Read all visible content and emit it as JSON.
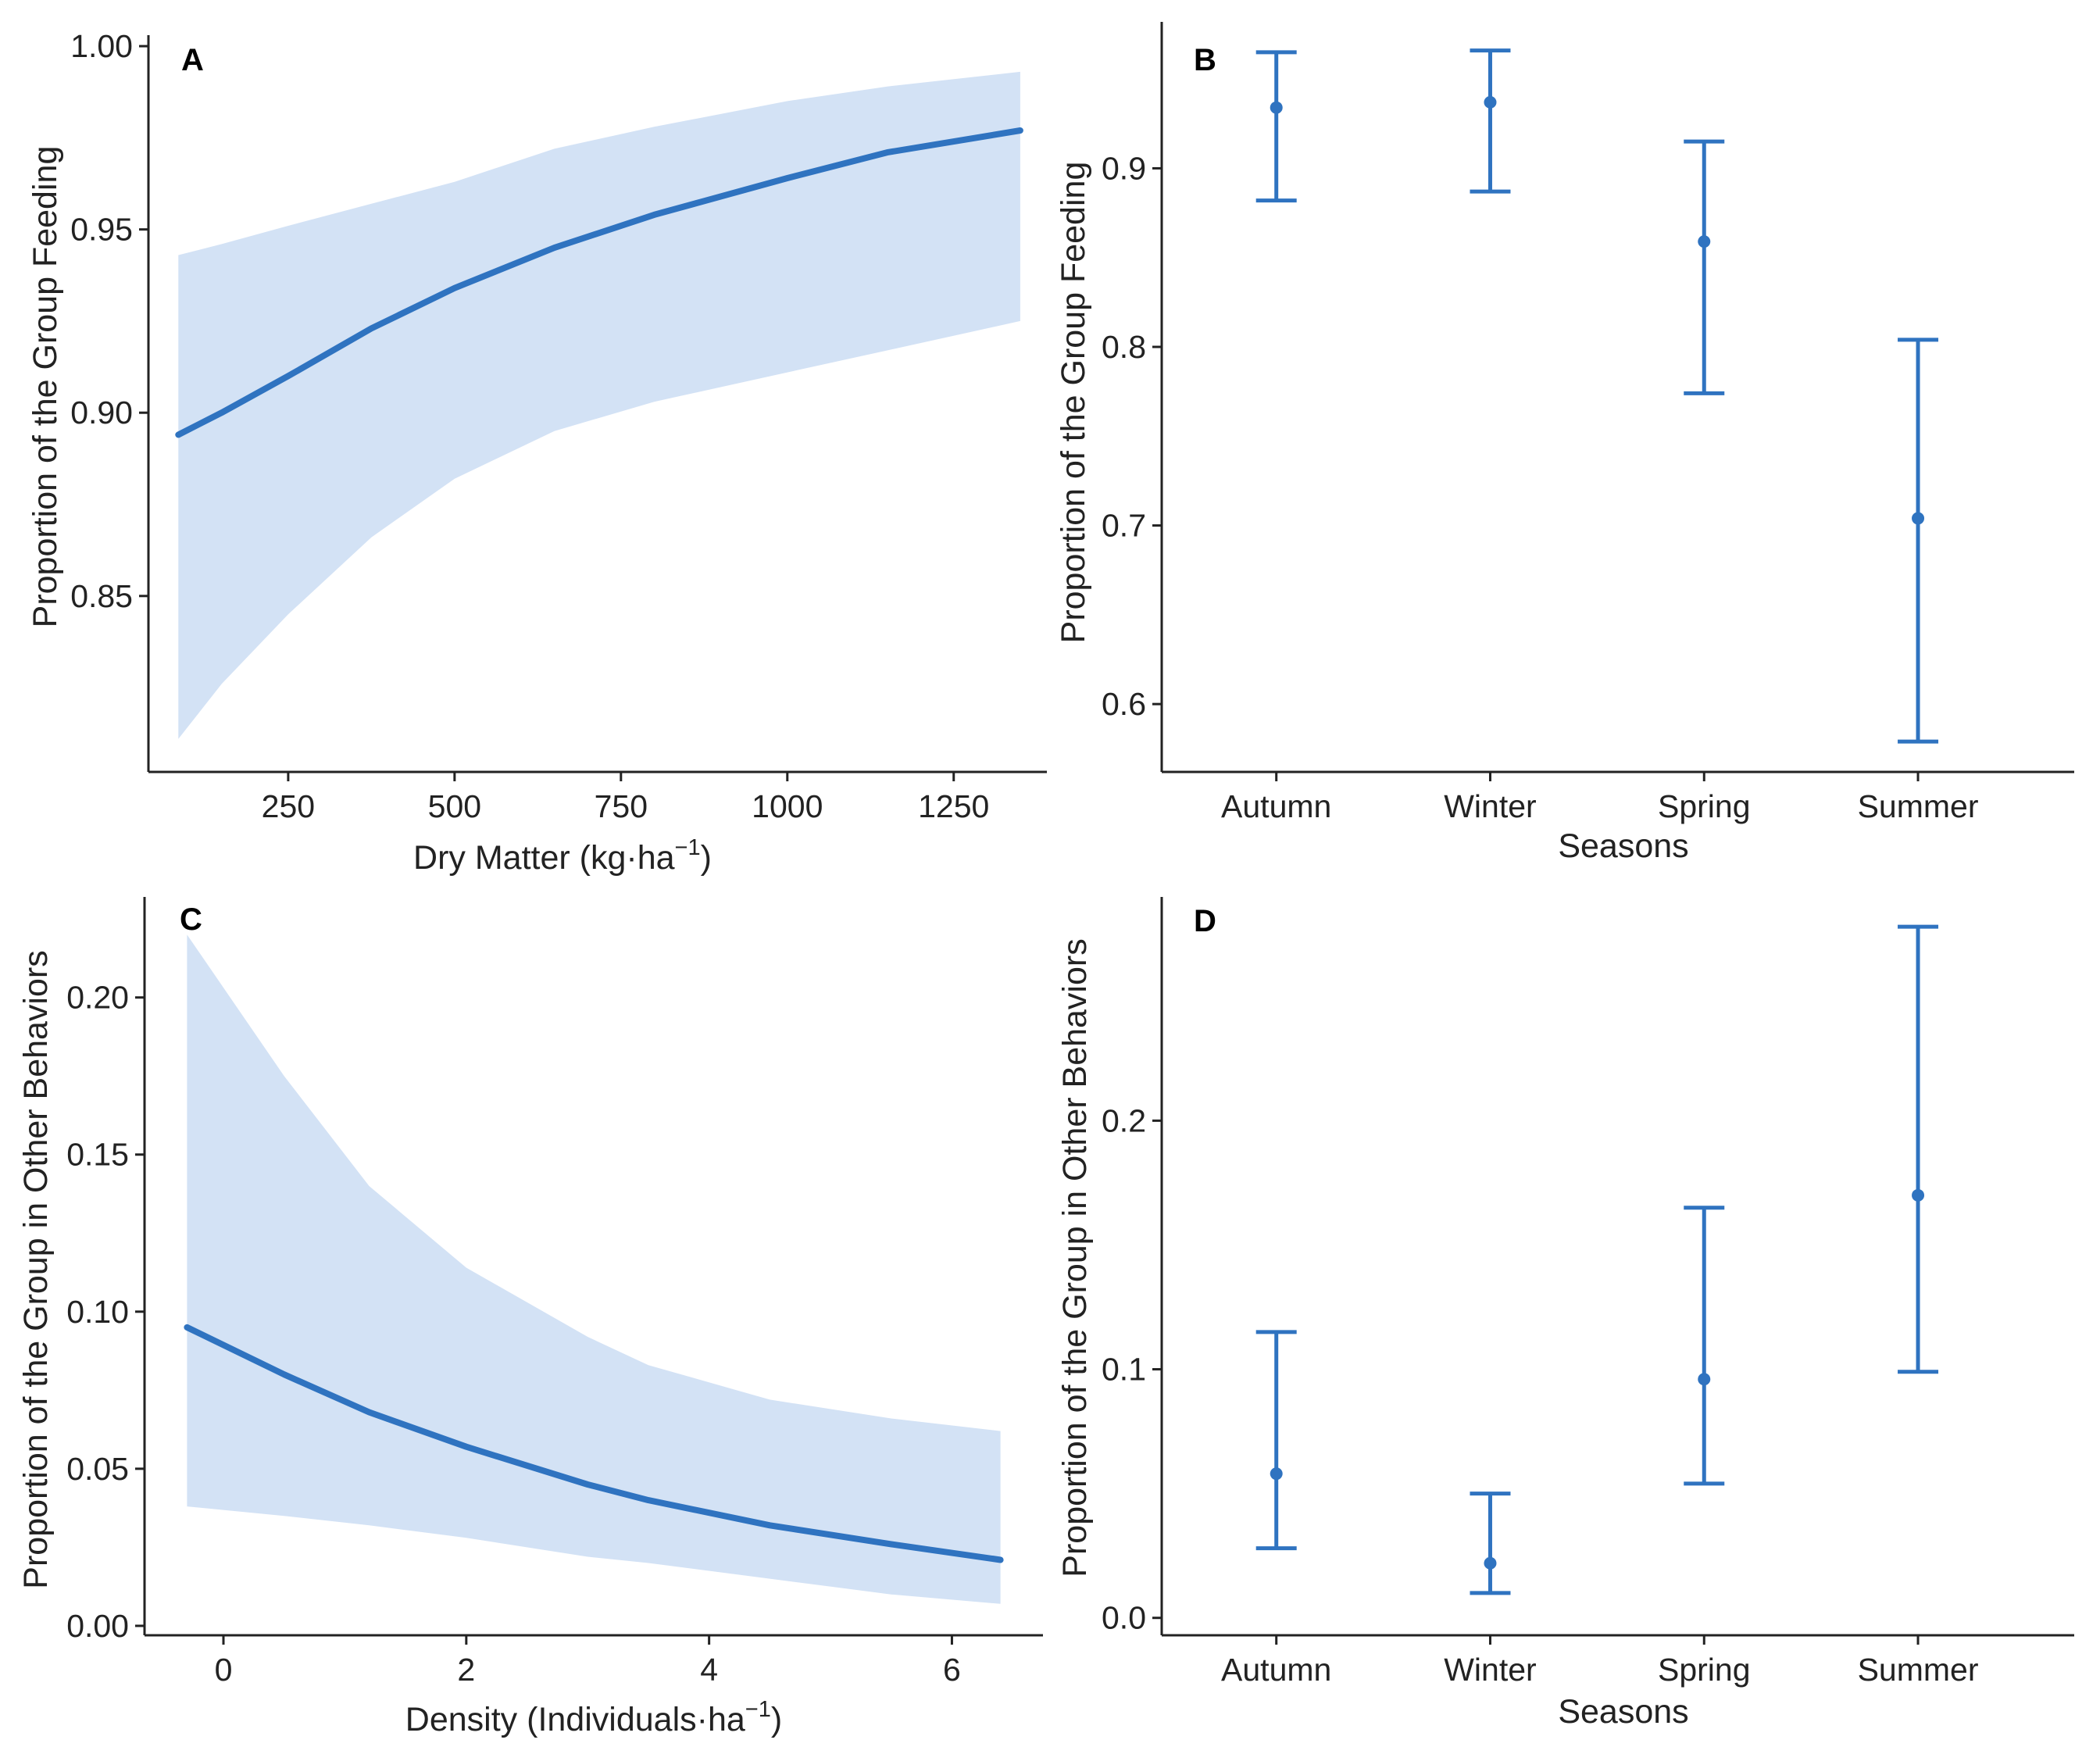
{
  "colors": {
    "line": "#2f73c0",
    "band": "#d3e2f5",
    "axis": "#222222"
  },
  "chart_data": [
    {
      "type": "line",
      "panel": "A",
      "xlabel": "Dry Matter (kg·ha",
      "xlabel_sup": "−1",
      "xlabel_tail": ")",
      "ylabel": "Proportion of the Group Feeding",
      "xlim": [
        40,
        1390
      ],
      "ylim": [
        0.802,
        1.003
      ],
      "x_ticks": [
        250,
        500,
        750,
        1000,
        1250
      ],
      "y_ticks": [
        0.85,
        0.9,
        0.95,
        1.0
      ],
      "y_tick_labels": [
        "0.85",
        "0.90",
        "0.95",
        "1.00"
      ],
      "x": [
        85,
        150,
        250,
        375,
        500,
        650,
        800,
        1000,
        1150,
        1350
      ],
      "fit": [
        0.894,
        0.9,
        0.91,
        0.923,
        0.934,
        0.945,
        0.954,
        0.964,
        0.971,
        0.977
      ],
      "lower": [
        0.811,
        0.826,
        0.845,
        0.866,
        0.882,
        0.895,
        0.903,
        0.911,
        0.917,
        0.925
      ],
      "upper": [
        0.943,
        0.946,
        0.951,
        0.957,
        0.963,
        0.972,
        0.978,
        0.985,
        0.989,
        0.993
      ]
    },
    {
      "type": "scatter",
      "panel": "B",
      "xlabel": "Seasons",
      "ylabel": "Proportion of the Group Feeding",
      "categories": [
        "Autumn",
        "Winter",
        "Spring",
        "Summer"
      ],
      "ylim": [
        0.562,
        0.982
      ],
      "y_ticks": [
        0.6,
        0.7,
        0.8,
        0.9
      ],
      "y_tick_labels": [
        "0.6",
        "0.7",
        "0.8",
        "0.9"
      ],
      "values": [
        0.934,
        0.937,
        0.859,
        0.704
      ],
      "lower": [
        0.882,
        0.887,
        0.774,
        0.579
      ],
      "upper": [
        0.965,
        0.966,
        0.915,
        0.804
      ]
    },
    {
      "type": "line",
      "panel": "C",
      "xlabel": "Density (Individuals·ha",
      "xlabel_sup": "−1",
      "xlabel_tail": ")",
      "ylabel": "Proportion of the Group in Other Behaviors",
      "xlim": [
        -0.65,
        6.75
      ],
      "ylim": [
        -0.003,
        0.232
      ],
      "x_ticks": [
        0,
        2,
        4,
        6
      ],
      "y_ticks": [
        0,
        0.05,
        0.1,
        0.15,
        0.2
      ],
      "y_tick_labels": [
        "0.00",
        "0.05",
        "0.10",
        "0.15",
        "0.20"
      ],
      "x": [
        -0.3,
        0.5,
        1.2,
        2.0,
        3.0,
        3.5,
        4.5,
        5.5,
        6.4
      ],
      "fit": [
        0.095,
        0.08,
        0.068,
        0.057,
        0.045,
        0.04,
        0.032,
        0.026,
        0.021
      ],
      "lower": [
        0.038,
        0.035,
        0.032,
        0.028,
        0.022,
        0.02,
        0.015,
        0.01,
        0.007
      ],
      "upper": [
        0.22,
        0.175,
        0.14,
        0.114,
        0.092,
        0.083,
        0.072,
        0.066,
        0.062
      ]
    },
    {
      "type": "scatter",
      "panel": "D",
      "xlabel": "Seasons",
      "ylabel": "Proportion of the Group in Other Behaviors",
      "categories": [
        "Autumn",
        "Winter",
        "Spring",
        "Summer"
      ],
      "ylim": [
        -0.007,
        0.29
      ],
      "y_ticks": [
        0,
        0.1,
        0.2
      ],
      "y_tick_labels": [
        "0.0",
        "0.1",
        "0.2"
      ],
      "values": [
        0.058,
        0.022,
        0.096,
        0.17
      ],
      "lower": [
        0.028,
        0.01,
        0.054,
        0.099
      ],
      "upper": [
        0.115,
        0.05,
        0.165,
        0.278
      ]
    }
  ]
}
